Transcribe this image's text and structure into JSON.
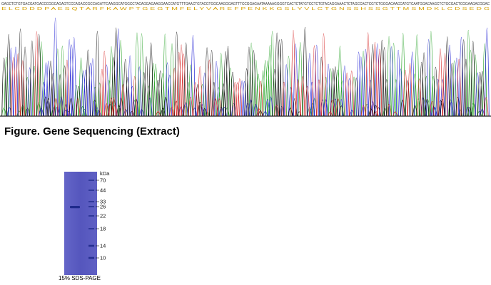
{
  "sequence": {
    "dna": "GAGCTCTGTGACGATGACCCGGCAGAGTCCCAGACCGCCAGATTCAAGGCATGGCCTACAGGAGAAGGAACCATGTTTGAACTGTACGTGGCAAGGGAGTTTCCGGAGAATAAAAAGGGGTCACTCTATGTCCTCTGTACAGGAAACTCTAGCCACTCGTCTGGGACAACCATGTCAATGGACAAGCTCTGCGACTCGGAAGACGGAC",
    "protein": "E L C D D D P A E S Q T A R F K A W P T G E G T M F E L Y V A R E F P E N K K G S L Y V L C T G N S S H S S G T T M S M D K L C D S E D G",
    "colors": {
      "A": "#2fa62f",
      "C": "#2a2ad6",
      "G": "#111111",
      "T": "#d62a2a",
      "protein": "#d6a000"
    }
  },
  "caption": {
    "text": "Figure. Gene Sequencing (Extract)"
  },
  "gel": {
    "unit_label": "kDa",
    "markers": [
      "70",
      "44",
      "33",
      "26",
      "22",
      "18",
      "14",
      "10"
    ],
    "caption": "15% SDS-PAGE",
    "colors": {
      "gel": "#5a5bc0",
      "band": "#1f2a8c"
    }
  }
}
